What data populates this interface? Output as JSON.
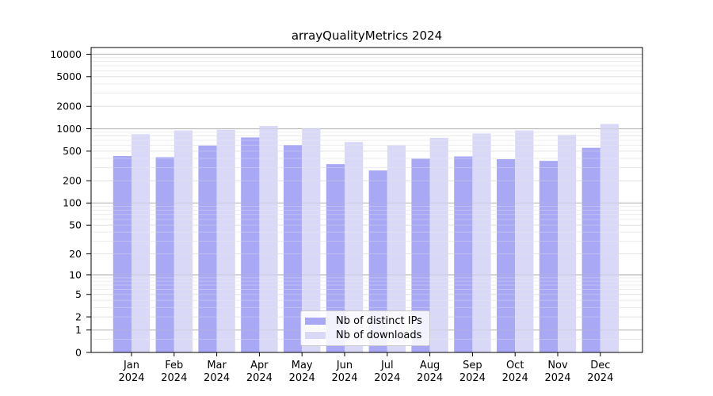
{
  "title": "arrayQualityMetrics 2024",
  "colors": {
    "background": "#ffffff",
    "axis": "#000000",
    "grid_decade": "#bdbdbd",
    "grid_labeled": "#e4e4e4",
    "grid_minor": "#ededed",
    "series_ips": "#a8a8f5",
    "series_downloads": "#d9d9f7",
    "legend_border": "#c9c9c9"
  },
  "legend": {
    "position": "inside-bottom-center",
    "items": [
      {
        "label": "Nb of distinct IPs"
      },
      {
        "label": "Nb of downloads"
      }
    ]
  },
  "chart_data": {
    "type": "bar",
    "title": "arrayQualityMetrics 2024",
    "scale": "log1p",
    "grid": true,
    "categories": [
      "Jan",
      "Feb",
      "Mar",
      "Apr",
      "May",
      "Jun",
      "Jul",
      "Aug",
      "Sep",
      "Oct",
      "Nov",
      "Dec"
    ],
    "x_year_line": "2024",
    "series": [
      {
        "name": "Nb of distinct IPs",
        "color": "#a8a8f5",
        "values": [
          430,
          415,
          595,
          765,
          605,
          335,
          275,
          395,
          425,
          390,
          370,
          555
        ]
      },
      {
        "name": "Nb of downloads",
        "color": "#d9d9f7",
        "values": [
          845,
          950,
          970,
          1090,
          1020,
          665,
          600,
          755,
          865,
          950,
          830,
          1160
        ]
      }
    ],
    "yticks": [
      0,
      1,
      2,
      5,
      10,
      20,
      50,
      100,
      200,
      500,
      1000,
      2000,
      5000,
      10000
    ],
    "decade_ticks": [
      1,
      10,
      100,
      1000,
      10000
    ],
    "minor_ticks": [
      0.5,
      3,
      4,
      6,
      7,
      8,
      9,
      30,
      40,
      60,
      70,
      80,
      90,
      300,
      400,
      600,
      700,
      800,
      900,
      3000,
      4000,
      6000,
      7000,
      8000,
      9000
    ],
    "ylim": [
      0,
      12300
    ],
    "xlabel": "",
    "ylabel": ""
  }
}
